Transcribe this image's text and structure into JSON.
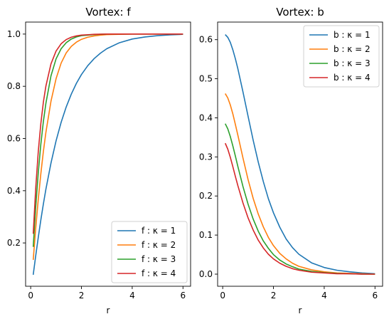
{
  "chart_data": [
    {
      "type": "line",
      "title": "Vortex: f",
      "xlabel": "r",
      "ylabel": "",
      "xlim": [
        -0.2,
        6.3
      ],
      "ylim": [
        0.034,
        1.046
      ],
      "xticks": [
        0,
        2,
        4,
        6
      ],
      "yticks": [
        0.2,
        0.4,
        0.6,
        0.8,
        1.0
      ],
      "xtick_labels": [
        "0",
        "2",
        "4",
        "6"
      ],
      "ytick_labels": [
        "0.2",
        "0.4",
        "0.6",
        "0.8",
        "1.0"
      ],
      "grid": false,
      "legend_position": "lower-right",
      "series": [
        {
          "name": "f : κ = 1",
          "color": "#1f77b4",
          "x": [
            0.1,
            0.2,
            0.3,
            0.4,
            0.5,
            0.6,
            0.8,
            1.0,
            1.2,
            1.4,
            1.6,
            1.8,
            2.0,
            2.25,
            2.5,
            2.75,
            3.0,
            3.5,
            4.0,
            4.5,
            5.0,
            5.5,
            6.0
          ],
          "y": [
            0.078,
            0.152,
            0.222,
            0.288,
            0.349,
            0.406,
            0.506,
            0.591,
            0.662,
            0.721,
            0.77,
            0.811,
            0.845,
            0.879,
            0.906,
            0.927,
            0.944,
            0.967,
            0.981,
            0.989,
            0.994,
            0.997,
            0.999
          ]
        },
        {
          "name": "f : κ = 2",
          "color": "#ff7f0e",
          "x": [
            0.1,
            0.2,
            0.3,
            0.4,
            0.5,
            0.6,
            0.8,
            1.0,
            1.2,
            1.4,
            1.6,
            1.8,
            2.0,
            2.25,
            2.5,
            2.75,
            3.0,
            3.5,
            4.0,
            5.0,
            6.0
          ],
          "y": [
            0.135,
            0.258,
            0.368,
            0.465,
            0.55,
            0.624,
            0.743,
            0.829,
            0.889,
            0.928,
            0.953,
            0.969,
            0.98,
            0.988,
            0.993,
            0.996,
            0.998,
            0.999,
            1.0,
            1.0,
            1.0
          ]
        },
        {
          "name": "f : κ = 3",
          "color": "#2ca02c",
          "x": [
            0.1,
            0.2,
            0.3,
            0.4,
            0.5,
            0.6,
            0.8,
            1.0,
            1.2,
            1.4,
            1.6,
            1.8,
            2.0,
            2.5,
            3.0,
            4.0,
            5.0,
            6.0
          ],
          "y": [
            0.185,
            0.34,
            0.47,
            0.578,
            0.665,
            0.735,
            0.84,
            0.905,
            0.944,
            0.967,
            0.981,
            0.989,
            0.994,
            0.998,
            1.0,
            1.0,
            1.0,
            1.0
          ]
        },
        {
          "name": "f : κ = 4",
          "color": "#d62728",
          "x": [
            0.1,
            0.2,
            0.3,
            0.4,
            0.5,
            0.6,
            0.8,
            1.0,
            1.2,
            1.4,
            1.6,
            1.8,
            2.0,
            2.5,
            3.0,
            4.0,
            5.0,
            6.0
          ],
          "y": [
            0.235,
            0.412,
            0.551,
            0.657,
            0.739,
            0.801,
            0.886,
            0.935,
            0.963,
            0.979,
            0.988,
            0.993,
            0.996,
            0.999,
            1.0,
            1.0,
            1.0,
            1.0
          ]
        }
      ]
    },
    {
      "type": "line",
      "title": "Vortex: b",
      "xlabel": "r",
      "ylabel": "",
      "xlim": [
        -0.2,
        6.3
      ],
      "ylim": [
        -0.031,
        0.645
      ],
      "xticks": [
        0,
        2,
        4,
        6
      ],
      "yticks": [
        0.0,
        0.1,
        0.2,
        0.3,
        0.4,
        0.5,
        0.6
      ],
      "xtick_labels": [
        "0",
        "2",
        "4",
        "6"
      ],
      "ytick_labels": [
        "0.0",
        "0.1",
        "0.2",
        "0.3",
        "0.4",
        "0.5",
        "0.6"
      ],
      "grid": false,
      "legend_position": "upper-right",
      "series": [
        {
          "name": "b : κ = 1",
          "color": "#1f77b4",
          "x": [
            0.1,
            0.2,
            0.3,
            0.4,
            0.5,
            0.6,
            0.8,
            1.0,
            1.2,
            1.4,
            1.6,
            1.8,
            2.0,
            2.25,
            2.5,
            2.75,
            3.0,
            3.5,
            4.0,
            4.5,
            5.0,
            5.5,
            6.0
          ],
          "y": [
            0.613,
            0.606,
            0.593,
            0.574,
            0.551,
            0.525,
            0.466,
            0.404,
            0.343,
            0.287,
            0.237,
            0.193,
            0.157,
            0.12,
            0.09,
            0.068,
            0.051,
            0.029,
            0.017,
            0.01,
            0.006,
            0.003,
            0.001
          ]
        },
        {
          "name": "b : κ = 2",
          "color": "#ff7f0e",
          "x": [
            0.1,
            0.2,
            0.3,
            0.4,
            0.5,
            0.6,
            0.8,
            1.0,
            1.2,
            1.4,
            1.6,
            1.8,
            2.0,
            2.25,
            2.5,
            2.75,
            3.0,
            3.5,
            4.0,
            4.5,
            5.0,
            5.5,
            6.0
          ],
          "y": [
            0.462,
            0.451,
            0.433,
            0.41,
            0.383,
            0.355,
            0.297,
            0.242,
            0.194,
            0.154,
            0.121,
            0.094,
            0.073,
            0.053,
            0.039,
            0.028,
            0.02,
            0.011,
            0.006,
            0.003,
            0.002,
            0.001,
            0.0
          ]
        },
        {
          "name": "b : κ = 3",
          "color": "#2ca02c",
          "x": [
            0.1,
            0.2,
            0.3,
            0.4,
            0.5,
            0.6,
            0.8,
            1.0,
            1.2,
            1.4,
            1.6,
            1.8,
            2.0,
            2.25,
            2.5,
            2.75,
            3.0,
            3.5,
            4.0,
            4.5,
            5.0,
            5.5,
            6.0
          ],
          "y": [
            0.385,
            0.372,
            0.352,
            0.328,
            0.302,
            0.275,
            0.224,
            0.179,
            0.141,
            0.11,
            0.085,
            0.066,
            0.05,
            0.036,
            0.026,
            0.019,
            0.013,
            0.007,
            0.004,
            0.002,
            0.001,
            0.0,
            0.0
          ]
        },
        {
          "name": "b : κ = 4",
          "color": "#d62728",
          "x": [
            0.1,
            0.2,
            0.3,
            0.4,
            0.5,
            0.6,
            0.8,
            1.0,
            1.2,
            1.4,
            1.6,
            1.8,
            2.0,
            2.25,
            2.5,
            2.75,
            3.0,
            3.5,
            4.0,
            4.5,
            5.0,
            5.5,
            6.0
          ],
          "y": [
            0.335,
            0.32,
            0.299,
            0.275,
            0.25,
            0.226,
            0.182,
            0.144,
            0.113,
            0.087,
            0.067,
            0.051,
            0.039,
            0.028,
            0.02,
            0.014,
            0.01,
            0.005,
            0.003,
            0.001,
            0.001,
            0.0,
            0.0
          ]
        }
      ]
    }
  ]
}
